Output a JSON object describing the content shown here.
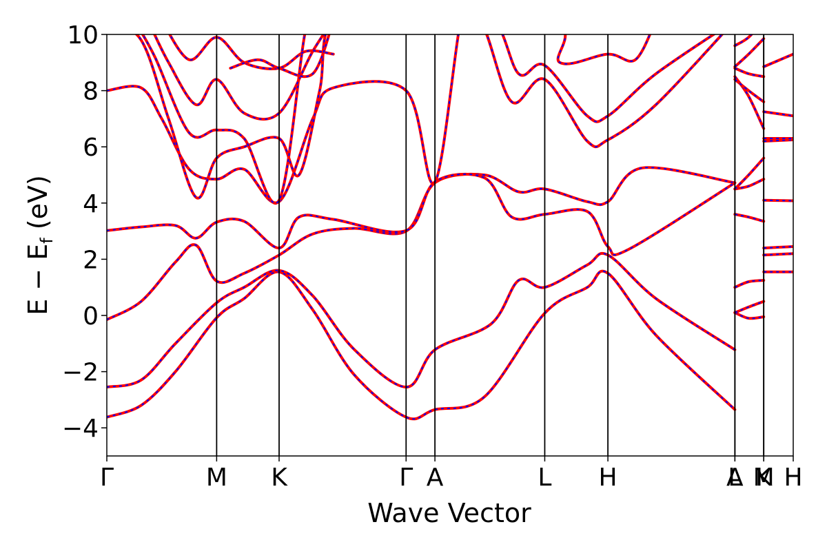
{
  "chart_data": {
    "type": "line",
    "title": "",
    "xlabel": "Wave Vector",
    "ylabel": {
      "main": "E − E",
      "subscript": "f",
      "unit": " (eV)"
    },
    "ylim": [
      -5,
      10
    ],
    "yticks": [
      -4,
      -2,
      0,
      2,
      4,
      6,
      8,
      10
    ],
    "ytick_labels": [
      "−4",
      "−2",
      "0",
      "2",
      "4",
      "6",
      "8",
      "10"
    ],
    "xlim": [
      0,
      1
    ],
    "kpoints": [
      {
        "label": "Γ",
        "x": 0.0
      },
      {
        "label": "M",
        "x": 0.16
      },
      {
        "label": "K",
        "x": 0.251
      },
      {
        "label": "Γ",
        "x": 0.436
      },
      {
        "label": "A",
        "x": 0.478
      },
      {
        "label": "L",
        "x": 0.638
      },
      {
        "label": "H",
        "x": 0.73
      },
      {
        "label": "A",
        "x": 0.915
      },
      {
        "label": "L",
        "x": 0.915
      },
      {
        "label": "M",
        "x": 0.957
      },
      {
        "label": "K",
        "x": 0.957
      },
      {
        "label": "H",
        "x": 1.0
      }
    ],
    "grid": false,
    "legend": "none",
    "colors": {
      "reference": "#ff0000",
      "overlay": "#0000ff",
      "axes": "#000000"
    },
    "series": [
      {
        "points": [
          [
            0,
            -3.62
          ],
          [
            0.05,
            -3.2
          ],
          [
            0.1,
            -2.0
          ],
          [
            0.16,
            -0.08
          ],
          [
            0.2,
            0.6
          ],
          [
            0.251,
            1.55
          ],
          [
            0.3,
            0.2
          ],
          [
            0.36,
            -2.1
          ],
          [
            0.436,
            -3.62
          ],
          [
            0.478,
            -3.35
          ],
          [
            0.55,
            -2.9
          ],
          [
            0.638,
            0.08
          ],
          [
            0.7,
            1.0
          ],
          [
            0.73,
            1.5
          ],
          [
            0.8,
            -0.7
          ],
          [
            0.915,
            -3.35
          ]
        ]
      },
      {
        "points": [
          [
            0,
            -2.55
          ],
          [
            0.05,
            -2.3
          ],
          [
            0.1,
            -1.0
          ],
          [
            0.16,
            0.45
          ],
          [
            0.2,
            1.0
          ],
          [
            0.251,
            1.6
          ],
          [
            0.3,
            0.7
          ],
          [
            0.36,
            -1.2
          ],
          [
            0.436,
            -2.55
          ],
          [
            0.478,
            -1.22
          ],
          [
            0.56,
            -0.3
          ],
          [
            0.6,
            1.25
          ],
          [
            0.638,
            1.0
          ],
          [
            0.7,
            1.8
          ],
          [
            0.73,
            2.15
          ],
          [
            0.8,
            0.6
          ],
          [
            0.915,
            -1.22
          ]
        ]
      },
      {
        "points": [
          [
            0,
            -0.15
          ],
          [
            0.05,
            0.5
          ],
          [
            0.1,
            1.9
          ],
          [
            0.13,
            2.5
          ],
          [
            0.16,
            1.22
          ],
          [
            0.2,
            1.5
          ],
          [
            0.251,
            2.15
          ],
          [
            0.3,
            2.9
          ],
          [
            0.36,
            3.1
          ],
          [
            0.436,
            3.0
          ],
          [
            0.478,
            4.72
          ],
          [
            0.55,
            5.0
          ],
          [
            0.6,
            4.4
          ],
          [
            0.638,
            4.5
          ],
          [
            0.7,
            4.05
          ],
          [
            0.73,
            4.05
          ],
          [
            0.78,
            5.25
          ],
          [
            0.915,
            4.72
          ]
        ]
      },
      {
        "points": [
          [
            0,
            3.02
          ],
          [
            0.05,
            3.15
          ],
          [
            0.1,
            3.2
          ],
          [
            0.13,
            2.75
          ],
          [
            0.16,
            3.32
          ],
          [
            0.2,
            3.35
          ],
          [
            0.251,
            2.4
          ],
          [
            0.28,
            3.5
          ],
          [
            0.33,
            3.42
          ],
          [
            0.436,
            3.02
          ],
          [
            0.478,
            4.75
          ],
          [
            0.55,
            4.9
          ],
          [
            0.59,
            3.5
          ],
          [
            0.638,
            3.6
          ],
          [
            0.7,
            3.7
          ],
          [
            0.73,
            2.45
          ],
          [
            0.76,
            2.35
          ],
          [
            0.915,
            4.72
          ]
        ]
      },
      {
        "points": [
          [
            0,
            8.0
          ],
          [
            0.05,
            8.1
          ],
          [
            0.08,
            7.0
          ],
          [
            0.12,
            5.2
          ],
          [
            0.16,
            4.85
          ],
          [
            0.2,
            5.2
          ],
          [
            0.251,
            4.05
          ],
          [
            0.3,
            7.0
          ],
          [
            0.33,
            8.1
          ],
          [
            0.436,
            8.0
          ],
          [
            0.478,
            4.75
          ],
          [
            0.52,
            11
          ],
          [
            0.55,
            10.2
          ],
          [
            0.59,
            7.6
          ],
          [
            0.638,
            8.4
          ],
          [
            0.7,
            6.2
          ],
          [
            0.73,
            6.25
          ],
          [
            0.8,
            7.5
          ],
          [
            0.915,
            10.5
          ]
        ]
      },
      {
        "points": [
          [
            0,
            10.5
          ],
          [
            0.05,
            9.8
          ],
          [
            0.09,
            7.0
          ],
          [
            0.13,
            4.2
          ],
          [
            0.16,
            5.6
          ],
          [
            0.2,
            6.0
          ],
          [
            0.251,
            6.3
          ],
          [
            0.28,
            5.0
          ],
          [
            0.31,
            8.0
          ],
          [
            0.33,
            10.5
          ],
          [
            0.436,
            10.5
          ],
          [
            0.478,
            10.5
          ],
          [
            0.56,
            10.6
          ],
          [
            0.6,
            8.6
          ],
          [
            0.638,
            8.9
          ],
          [
            0.7,
            7.1
          ],
          [
            0.73,
            7.1
          ],
          [
            0.8,
            8.6
          ],
          [
            0.915,
            10.5
          ]
        ]
      },
      {
        "points": [
          [
            0.04,
            10.5
          ],
          [
            0.07,
            9.2
          ],
          [
            0.12,
            6.5
          ],
          [
            0.16,
            6.6
          ],
          [
            0.2,
            6.3
          ],
          [
            0.251,
            4.1
          ],
          [
            0.29,
            10.2
          ],
          [
            0.31,
            10.5
          ],
          [
            0.64,
            10.5
          ],
          [
            0.66,
            9.0
          ],
          [
            0.73,
            9.3
          ],
          [
            0.77,
            9.1
          ],
          [
            0.8,
            10.5
          ]
        ]
      },
      {
        "points": [
          [
            0.06,
            10.5
          ],
          [
            0.09,
            9.0
          ],
          [
            0.13,
            7.5
          ],
          [
            0.16,
            8.4
          ],
          [
            0.2,
            7.2
          ],
          [
            0.251,
            7.2
          ],
          [
            0.3,
            9.4
          ],
          [
            0.33,
            10.5
          ]
        ]
      },
      {
        "points": [
          [
            0.08,
            10.5
          ],
          [
            0.12,
            9.1
          ],
          [
            0.16,
            9.9
          ],
          [
            0.2,
            9.0
          ],
          [
            0.251,
            8.8
          ],
          [
            0.29,
            9.4
          ],
          [
            0.33,
            9.3
          ]
        ]
      },
      {
        "points": [
          [
            0.18,
            8.8
          ],
          [
            0.22,
            9.1
          ],
          [
            0.251,
            8.8
          ],
          [
            0.3,
            8.6
          ],
          [
            0.33,
            10.5
          ]
        ]
      }
    ],
    "segment_points": [
      {
        "points": [
          [
            0.915,
            0.1
          ],
          [
            0.935,
            -0.1
          ],
          [
            0.957,
            -0.05
          ]
        ]
      },
      {
        "points": [
          [
            0.915,
            0.1
          ],
          [
            0.935,
            0.3
          ],
          [
            0.957,
            0.5
          ]
        ]
      },
      {
        "points": [
          [
            0.915,
            1.0
          ],
          [
            0.935,
            1.2
          ],
          [
            0.957,
            1.25
          ]
        ]
      },
      {
        "points": [
          [
            0.915,
            3.6
          ],
          [
            0.935,
            3.5
          ],
          [
            0.957,
            3.35
          ]
        ]
      },
      {
        "points": [
          [
            0.915,
            4.5
          ],
          [
            0.935,
            4.6
          ],
          [
            0.957,
            4.85
          ]
        ]
      },
      {
        "points": [
          [
            0.915,
            4.5
          ],
          [
            0.935,
            5.0
          ],
          [
            0.957,
            5.6
          ]
        ]
      },
      {
        "points": [
          [
            0.915,
            8.5
          ],
          [
            0.935,
            7.8
          ],
          [
            0.957,
            6.65
          ]
        ]
      },
      {
        "points": [
          [
            0.915,
            8.4
          ],
          [
            0.935,
            8.0
          ],
          [
            0.957,
            7.6
          ]
        ]
      },
      {
        "points": [
          [
            0.915,
            8.8
          ],
          [
            0.935,
            8.6
          ],
          [
            0.957,
            8.5
          ]
        ]
      },
      {
        "points": [
          [
            0.915,
            8.85
          ],
          [
            0.935,
            9.3
          ],
          [
            0.957,
            9.85
          ]
        ]
      },
      {
        "points": [
          [
            0.915,
            9.6
          ],
          [
            0.935,
            9.9
          ],
          [
            0.957,
            10.5
          ]
        ]
      },
      {
        "points": [
          [
            0.957,
            1.55
          ],
          [
            1.0,
            1.55
          ]
        ]
      },
      {
        "points": [
          [
            0.957,
            2.15
          ],
          [
            1.0,
            2.2
          ]
        ]
      },
      {
        "points": [
          [
            0.957,
            2.4
          ],
          [
            1.0,
            2.45
          ]
        ]
      },
      {
        "points": [
          [
            0.957,
            4.1
          ],
          [
            1.0,
            4.08
          ]
        ]
      },
      {
        "points": [
          [
            0.957,
            6.2
          ],
          [
            1.0,
            6.25
          ]
        ]
      },
      {
        "points": [
          [
            0.957,
            6.3
          ],
          [
            1.0,
            6.3
          ]
        ]
      },
      {
        "points": [
          [
            0.957,
            7.25
          ],
          [
            1.0,
            7.1
          ]
        ]
      },
      {
        "points": [
          [
            0.957,
            8.85
          ],
          [
            1.0,
            9.3
          ]
        ]
      }
    ]
  }
}
